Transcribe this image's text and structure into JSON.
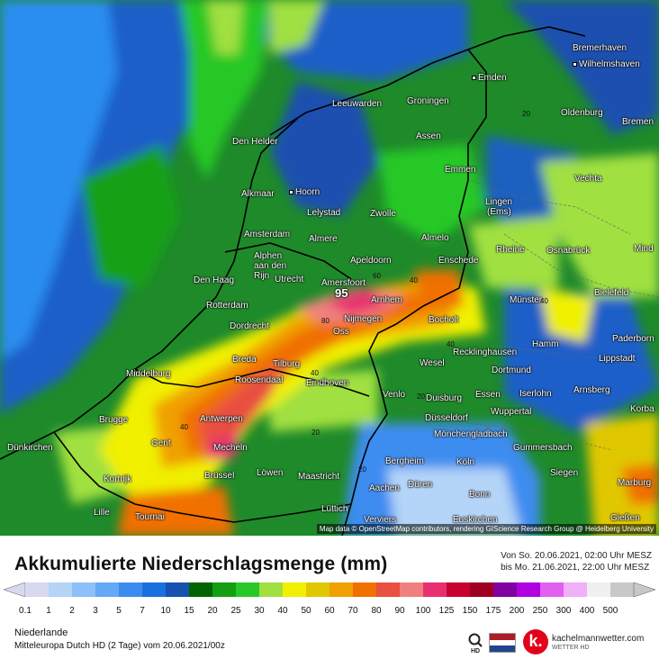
{
  "map": {
    "attribution": "Map data © OpenStreetMap contributors, rendering GIScience Research Group @ Heidelberg University",
    "peak_value": "95",
    "cities": [
      {
        "name": "Bremerhaven"
      },
      {
        "name": "Wilhelmshaven"
      },
      {
        "name": "Emden"
      },
      {
        "name": "Oldenburg"
      },
      {
        "name": "Bremen"
      },
      {
        "name": "Leeuwarden"
      },
      {
        "name": "Groningen"
      },
      {
        "name": "Den Helder"
      },
      {
        "name": "Assen"
      },
      {
        "name": "Emmen"
      },
      {
        "name": "Vechta"
      },
      {
        "name": "Alkmaar"
      },
      {
        "name": "Hoorn"
      },
      {
        "name": "Lelystad"
      },
      {
        "name": "Zwolle"
      },
      {
        "name": "Lingen"
      },
      {
        "name": "(Ems)"
      },
      {
        "name": "Amsterdam"
      },
      {
        "name": "Almere"
      },
      {
        "name": "Almelo"
      },
      {
        "name": "Rheine"
      },
      {
        "name": "Osnabrück"
      },
      {
        "name": "Mind"
      },
      {
        "name": "Alphen"
      },
      {
        "name": "aan den"
      },
      {
        "name": "Rijn"
      },
      {
        "name": "Apeldoorn"
      },
      {
        "name": "Enschede"
      },
      {
        "name": "Den Haag"
      },
      {
        "name": "Utrecht"
      },
      {
        "name": "Amersfoort"
      },
      {
        "name": "Bielefeld"
      },
      {
        "name": "Arnhem"
      },
      {
        "name": "Münster"
      },
      {
        "name": "Rotterdam"
      },
      {
        "name": "Nijmegen"
      },
      {
        "name": "Bocholt"
      },
      {
        "name": "Paderborn"
      },
      {
        "name": "Dordrecht"
      },
      {
        "name": "Oss"
      },
      {
        "name": "Hamm"
      },
      {
        "name": "Recklinghausen"
      },
      {
        "name": "Lippstadt"
      },
      {
        "name": "Breda"
      },
      {
        "name": "Tilburg"
      },
      {
        "name": "Wesel"
      },
      {
        "name": "Dortmund"
      },
      {
        "name": "Middelburg"
      },
      {
        "name": "Roosendaal"
      },
      {
        "name": "Eindhoven"
      },
      {
        "name": "Arnsberg"
      },
      {
        "name": "Essen"
      },
      {
        "name": "Iserlohn"
      },
      {
        "name": "Venlo"
      },
      {
        "name": "Duisburg"
      },
      {
        "name": "Brugge"
      },
      {
        "name": "Antwerpen"
      },
      {
        "name": "Wuppertal"
      },
      {
        "name": "Korba"
      },
      {
        "name": "Düsseldorf"
      },
      {
        "name": "Dünkirchen"
      },
      {
        "name": "Gent"
      },
      {
        "name": "Mönchengladbach"
      },
      {
        "name": "Mecheln"
      },
      {
        "name": "Gummersbach"
      },
      {
        "name": "Bergheim"
      },
      {
        "name": "Köln"
      },
      {
        "name": "Kortrijk"
      },
      {
        "name": "Löwen"
      },
      {
        "name": "Brüssel"
      },
      {
        "name": "Maastricht"
      },
      {
        "name": "Siegen"
      },
      {
        "name": "Aachen"
      },
      {
        "name": "Düren"
      },
      {
        "name": "Marburg"
      },
      {
        "name": "Bonn"
      },
      {
        "name": "Lille"
      },
      {
        "name": "Lüttich"
      },
      {
        "name": "Tournai"
      },
      {
        "name": "Verviers"
      },
      {
        "name": "Euskirchen"
      },
      {
        "name": "Gießen"
      }
    ],
    "contour_labels": [
      "20",
      "40",
      "60",
      "80",
      "40",
      "40",
      "40",
      "20",
      "20",
      "40",
      "20"
    ]
  },
  "footer": {
    "title": "Akkumulierte Niederschlagsmenge (mm)",
    "period_from": "Von So. 20.06.2021, 02:00 Uhr MESZ",
    "period_to": "bis Mo. 21.06.2021, 22:00 Uhr MESZ",
    "region": "Niederlande",
    "model": "Mitteleuropa Dutch HD  (2 Tage)  vom  20.06.2021/00z",
    "brand_name": "kachelmannwetter.com",
    "brand_sub": "WETTER HD",
    "brand_letter": "k."
  },
  "legend": {
    "labels": [
      "0.1",
      "1",
      "2",
      "3",
      "5",
      "7",
      "10",
      "15",
      "20",
      "25",
      "30",
      "40",
      "50",
      "60",
      "70",
      "80",
      "90",
      "100",
      "125",
      "150",
      "175",
      "200",
      "250",
      "300",
      "400",
      "500"
    ],
    "colors": [
      "#d8d8f0",
      "#b4d4f8",
      "#8cc0f8",
      "#64a8f8",
      "#3c8cf0",
      "#1870e0",
      "#1850b0",
      "#006400",
      "#12a012",
      "#28c828",
      "#a0e040",
      "#f0f000",
      "#e0c800",
      "#f0a000",
      "#f07000",
      "#e85040",
      "#f08080",
      "#e83070",
      "#c80030",
      "#a00020",
      "#8000a0",
      "#b000e0",
      "#e060f0",
      "#f0b0f8",
      "#f0f0f0",
      "#c8c8c8"
    ]
  },
  "colors": {
    "flag_red": "#ae1c28",
    "flag_white": "#ffffff",
    "flag_blue": "#21468b",
    "brand": "#e2001a"
  }
}
